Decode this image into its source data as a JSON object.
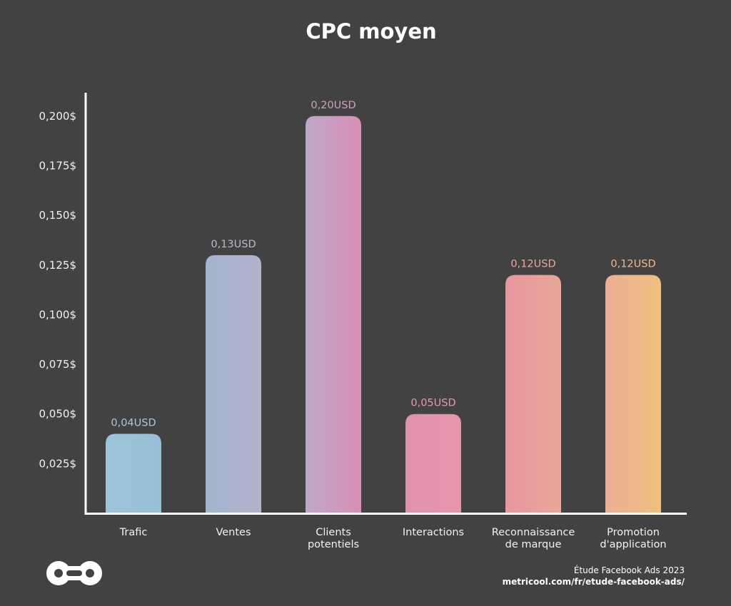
{
  "chart_data": {
    "type": "bar",
    "title": "CPC moyen",
    "categories": [
      "Trafic",
      "Ventes",
      "Clients potentiels",
      "Interactions",
      "Reconnaissance de marque",
      "Promotion d'application"
    ],
    "category_lines": [
      [
        "Trafic"
      ],
      [
        "Ventes"
      ],
      [
        "Clients",
        "potentiels"
      ],
      [
        "Interactions"
      ],
      [
        "Reconnaissance",
        "de marque"
      ],
      [
        "Promotion",
        "d'application"
      ]
    ],
    "values": [
      0.04,
      0.13,
      0.2,
      0.05,
      0.12,
      0.12
    ],
    "data_labels": [
      "0,04USD",
      "0,13USD",
      "0,20USD",
      "0,05USD",
      "0,12USD",
      "0,12USD"
    ],
    "yticks": [
      0.025,
      0.05,
      0.075,
      0.1,
      0.125,
      0.15,
      0.175,
      0.2
    ],
    "ytick_labels": [
      "0,025$",
      "0,050$",
      "0,075$",
      "0,100$",
      "0,125$",
      "0,150$",
      "0,175$",
      "0,200$"
    ],
    "ylim": [
      0,
      0.21
    ],
    "xlabel": "",
    "ylabel": "",
    "grid": false,
    "bar_colors": [
      [
        "#9ec4d9",
        "#97c0d6"
      ],
      [
        "#a3b5cf",
        "#b2b2cc"
      ],
      [
        "#bfa8c9",
        "#d88fb4"
      ],
      [
        "#e091b0",
        "#e696aa"
      ],
      [
        "#e8969f",
        "#e8a898"
      ],
      [
        "#ecae96",
        "#efc07c"
      ]
    ],
    "label_colors": [
      "#a8c9dd",
      "#b6bccc",
      "#d0a0c0",
      "#e898b0",
      "#eba894",
      "#efb98a"
    ]
  },
  "footer": {
    "logo": "metricool-logo-icon",
    "source_line1": "Étude Facebook Ads 2023",
    "source_line2": "metricool.com/fr/etude-facebook-ads/"
  }
}
